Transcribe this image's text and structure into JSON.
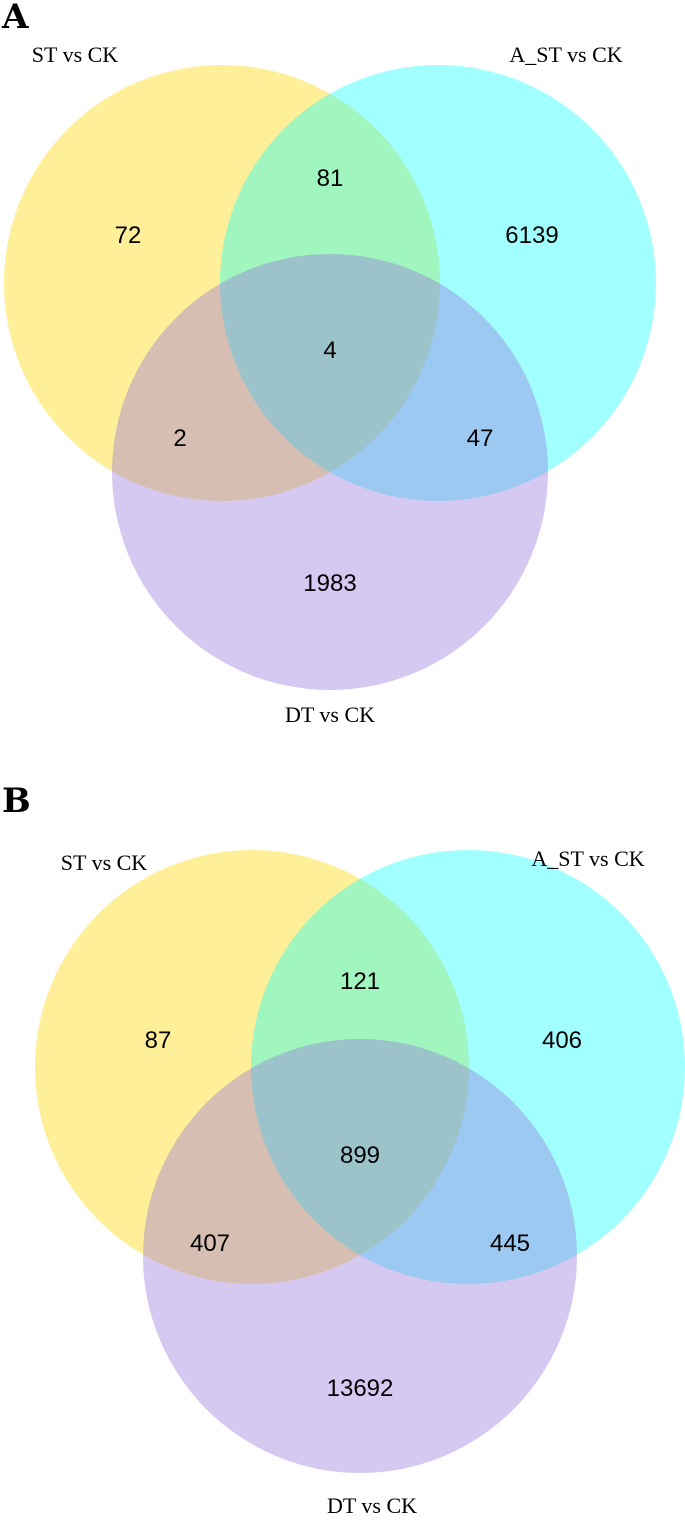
{
  "colors": {
    "set1": "#FFD700",
    "set2": "#00FFFF",
    "set3": "#9370DB"
  },
  "panels": [
    {
      "letter": "A",
      "sets": [
        "ST vs CK",
        "A_ST vs CK",
        "DT vs CK"
      ],
      "regions": {
        "only1": "72",
        "only2": "6139",
        "only3": "1983",
        "ab": "81",
        "ac": "2",
        "bc": "47",
        "abc": "4"
      }
    },
    {
      "letter": "B",
      "sets": [
        "ST vs CK",
        "A_ST vs CK",
        "DT vs CK"
      ],
      "regions": {
        "only1": "87",
        "only2": "406",
        "only3": "13692",
        "ab": "121",
        "ac": "407",
        "bc": "445",
        "abc": "899"
      }
    }
  ]
}
